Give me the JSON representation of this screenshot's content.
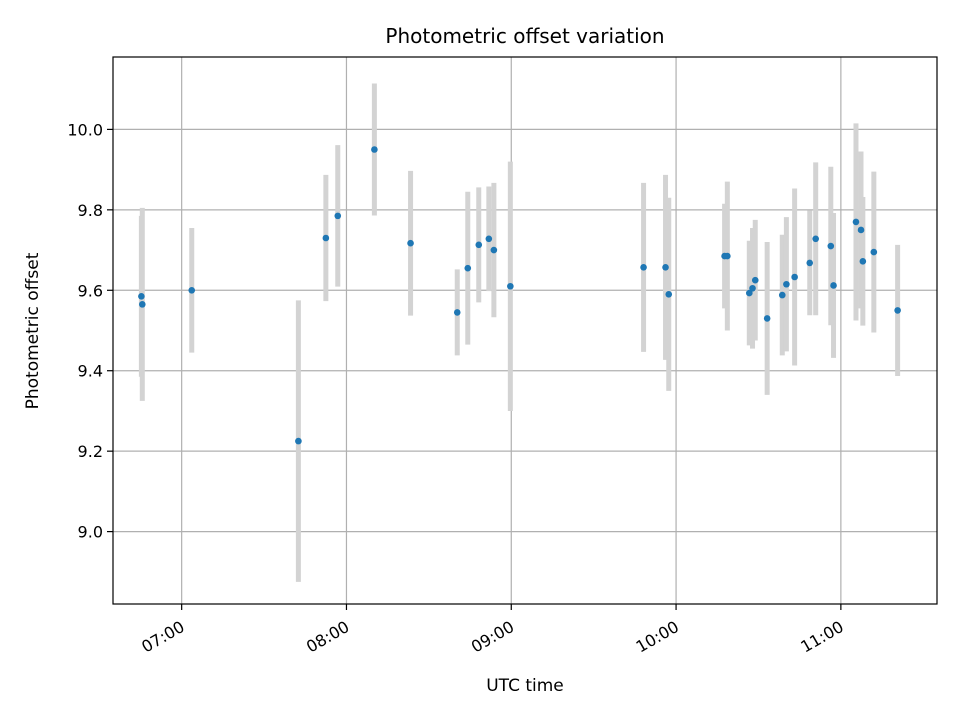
{
  "chart_data": {
    "type": "scatter",
    "title": "Photometric offset variation",
    "xlabel": "UTC time",
    "ylabel": "Photometric offset",
    "x_axis": "time",
    "xlim": [
      "06:35",
      "11:35"
    ],
    "ylim": [
      8.82,
      10.18
    ],
    "x_ticks": [
      "07:00",
      "08:00",
      "09:00",
      "10:00",
      "11:00"
    ],
    "y_ticks": [
      9.0,
      9.2,
      9.4,
      9.6,
      9.8,
      10.0
    ],
    "y_tick_labels": [
      "9.0",
      "9.2",
      "9.4",
      "9.6",
      "9.8",
      "10.0"
    ],
    "grid": true,
    "colors": {
      "point": "#1f77b4",
      "errorbar": "#d3d3d3",
      "grid": "#b0b0b0"
    },
    "points": [
      {
        "t": "06:45:20",
        "y": 9.585,
        "err": 0.2
      },
      {
        "t": "06:45:40",
        "y": 9.565,
        "err": 0.24
      },
      {
        "t": "07:03:40",
        "y": 9.6,
        "err": 0.155
      },
      {
        "t": "07:42:30",
        "y": 9.225,
        "err": 0.35
      },
      {
        "t": "07:52:30",
        "y": 9.73,
        "err": 0.157
      },
      {
        "t": "07:56:50",
        "y": 9.785,
        "err": 0.176
      },
      {
        "t": "08:10:10",
        "y": 9.95,
        "err": 0.164
      },
      {
        "t": "08:23:20",
        "y": 9.717,
        "err": 0.18
      },
      {
        "t": "08:40:20",
        "y": 9.545,
        "err": 0.107
      },
      {
        "t": "08:44:10",
        "y": 9.655,
        "err": 0.19
      },
      {
        "t": "08:48:10",
        "y": 9.713,
        "err": 0.143
      },
      {
        "t": "08:51:50",
        "y": 9.728,
        "err": 0.13
      },
      {
        "t": "08:53:40",
        "y": 9.7,
        "err": 0.167
      },
      {
        "t": "08:59:40",
        "y": 9.61,
        "err": 0.31
      },
      {
        "t": "09:48:10",
        "y": 9.657,
        "err": 0.21
      },
      {
        "t": "09:56:10",
        "y": 9.657,
        "err": 0.23
      },
      {
        "t": "09:57:20",
        "y": 9.59,
        "err": 0.24
      },
      {
        "t": "10:17:40",
        "y": 9.685,
        "err": 0.13
      },
      {
        "t": "10:18:40",
        "y": 9.685,
        "err": 0.185
      },
      {
        "t": "10:26:40",
        "y": 9.593,
        "err": 0.13
      },
      {
        "t": "10:27:50",
        "y": 9.605,
        "err": 0.15
      },
      {
        "t": "10:28:50",
        "y": 9.625,
        "err": 0.15
      },
      {
        "t": "10:33:10",
        "y": 9.53,
        "err": 0.19
      },
      {
        "t": "10:38:40",
        "y": 9.588,
        "err": 0.15
      },
      {
        "t": "10:40:10",
        "y": 9.615,
        "err": 0.167
      },
      {
        "t": "10:43:10",
        "y": 9.633,
        "err": 0.22
      },
      {
        "t": "10:48:40",
        "y": 9.668,
        "err": 0.13
      },
      {
        "t": "10:50:50",
        "y": 9.728,
        "err": 0.19
      },
      {
        "t": "10:56:20",
        "y": 9.71,
        "err": 0.197
      },
      {
        "t": "10:57:20",
        "y": 9.612,
        "err": 0.18
      },
      {
        "t": "11:05:30",
        "y": 9.77,
        "err": 0.245
      },
      {
        "t": "11:07:20",
        "y": 9.75,
        "err": 0.195
      },
      {
        "t": "11:08:00",
        "y": 9.672,
        "err": 0.16
      },
      {
        "t": "11:12:00",
        "y": 9.695,
        "err": 0.2
      },
      {
        "t": "11:20:40",
        "y": 9.55,
        "err": 0.163
      }
    ]
  }
}
